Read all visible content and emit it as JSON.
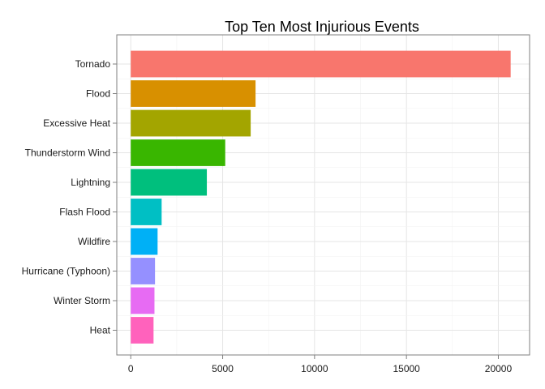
{
  "chart_data": {
    "type": "bar",
    "orientation": "horizontal",
    "title": "Top Ten Most Injurious Events",
    "xlabel": "",
    "ylabel": "",
    "categories": [
      "Tornado",
      "Flood",
      "Excessive Heat",
      "Thunderstorm Wind",
      "Lightning",
      "Flash Flood",
      "Wildfire",
      "Hurricane (Typhoon)",
      "Winter Storm",
      "Heat"
    ],
    "values": [
      20670,
      6790,
      6525,
      5140,
      4140,
      1680,
      1460,
      1320,
      1290,
      1240
    ],
    "colors": [
      "#F8766D",
      "#D89000",
      "#A3A500",
      "#39B600",
      "#00BF7D",
      "#00BFC4",
      "#00B0F6",
      "#9590FF",
      "#E76BF3",
      "#FF62BC"
    ],
    "xlim": [
      -760,
      21700
    ],
    "xticks": [
      0,
      5000,
      10000,
      15000,
      20000
    ],
    "xtick_labels": [
      "0",
      "5000",
      "10000",
      "15000",
      "20000"
    ],
    "grid": true,
    "legend": "none"
  }
}
